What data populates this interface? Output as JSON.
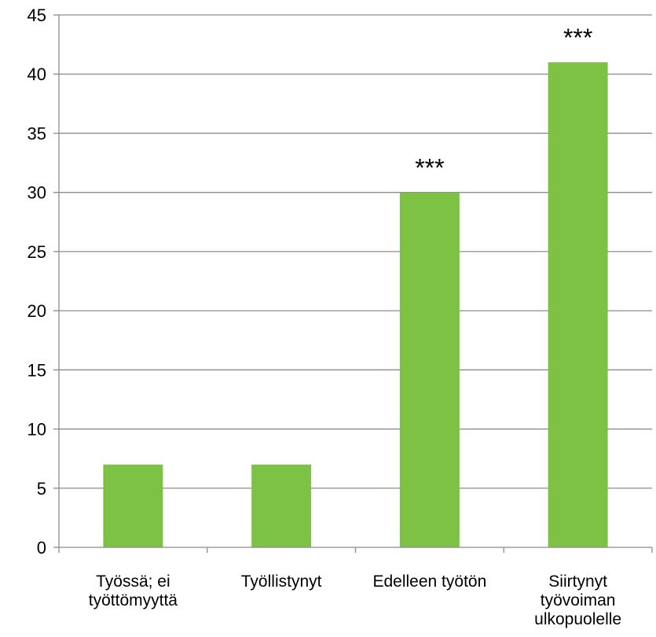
{
  "chart_data": {
    "type": "bar",
    "categories": [
      [
        "Työssä; ei",
        "työttömyyttä"
      ],
      [
        "Työllistynyt"
      ],
      [
        "Edelleen työtön"
      ],
      [
        "Siirtynyt",
        "työvoiman",
        "ulkopuolelle"
      ]
    ],
    "values": [
      7,
      7,
      30,
      41
    ],
    "annotations": [
      "",
      "",
      "***",
      "***"
    ],
    "ylim": [
      0,
      45
    ],
    "yticks": [
      0,
      5,
      10,
      15,
      20,
      25,
      30,
      35,
      40,
      45
    ],
    "grid": true,
    "bar_color": "#7dc244",
    "title": "",
    "xlabel": "",
    "ylabel": ""
  }
}
